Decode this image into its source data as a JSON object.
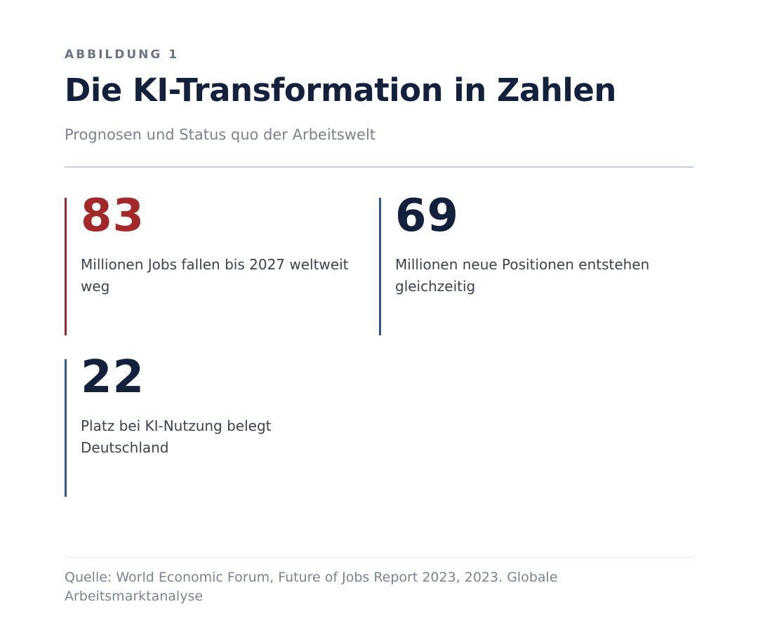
{
  "figure": {
    "label": "ABBILDUNG 1",
    "title": "Die KI-Transformation in Zahlen",
    "subtitle": "Prognosen und Status quo der Arbeitswelt"
  },
  "stats": [
    {
      "value": "83",
      "text": "Millionen Jobs fallen bis 2027 weltweit weg",
      "accent_color": "#a3282a"
    },
    {
      "value": "69",
      "text": "Millionen neue Positionen entstehen gleichzeitig",
      "accent_color": "#2f5597"
    },
    {
      "value": "22",
      "text": "Platz bei KI-Nutzung belegt Deutschland",
      "accent_color": "#2f5597"
    }
  ],
  "source": "Quelle: World Economic Forum, Future of Jobs Report 2023, 2023. Globale Arbeitsmarktanalyse",
  "colors": {
    "title": "#13213d",
    "muted": "#7a8394",
    "highlight": "#a3282a",
    "bar": "#2f5597"
  }
}
